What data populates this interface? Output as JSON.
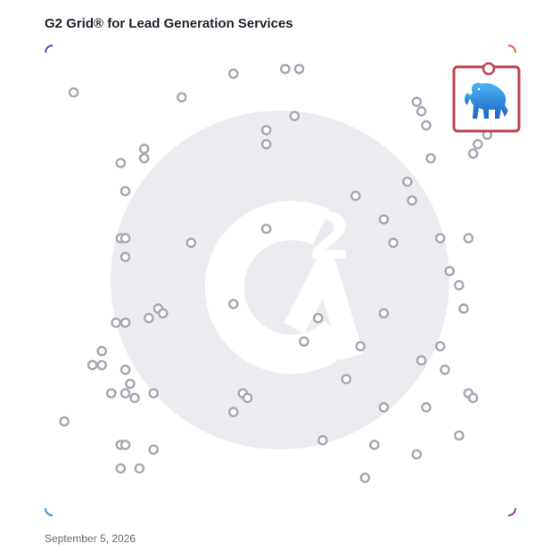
{
  "title": "G2 Grid® for Lead Generation Services",
  "date": "September 5, 2026",
  "colors": {
    "border_top_left": "#6a3fb5",
    "border_top_right": "#e8553a",
    "border_bottom_left": "#2f8fd6",
    "border_bottom_right": "#8a3aa6",
    "point": "#a6a8b1",
    "watermark": "#ececf0",
    "highlight": "#c0474f"
  },
  "highlight_icon": "blue-elephant-logo-icon",
  "chart_data": {
    "type": "scatter",
    "title": "G2 Grid® for Lead Generation Services",
    "xlim": [
      0,
      1
    ],
    "ylim": [
      0,
      1
    ],
    "grid": "quadrants",
    "highlight": {
      "x": 0.93,
      "y": 0.93
    },
    "points": [
      {
        "x": 0.06,
        "y": 0.9
      },
      {
        "x": 0.29,
        "y": 0.89
      },
      {
        "x": 0.4,
        "y": 0.94
      },
      {
        "x": 0.51,
        "y": 0.95
      },
      {
        "x": 0.54,
        "y": 0.95
      },
      {
        "x": 0.47,
        "y": 0.82
      },
      {
        "x": 0.47,
        "y": 0.79
      },
      {
        "x": 0.53,
        "y": 0.85
      },
      {
        "x": 0.16,
        "y": 0.75
      },
      {
        "x": 0.21,
        "y": 0.76
      },
      {
        "x": 0.21,
        "y": 0.78
      },
      {
        "x": 0.17,
        "y": 0.69
      },
      {
        "x": 0.16,
        "y": 0.59
      },
      {
        "x": 0.17,
        "y": 0.59
      },
      {
        "x": 0.17,
        "y": 0.55
      },
      {
        "x": 0.31,
        "y": 0.58
      },
      {
        "x": 0.47,
        "y": 0.61
      },
      {
        "x": 0.66,
        "y": 0.68
      },
      {
        "x": 0.72,
        "y": 0.63
      },
      {
        "x": 0.74,
        "y": 0.58
      },
      {
        "x": 0.77,
        "y": 0.71
      },
      {
        "x": 0.78,
        "y": 0.67
      },
      {
        "x": 0.79,
        "y": 0.88
      },
      {
        "x": 0.8,
        "y": 0.86
      },
      {
        "x": 0.81,
        "y": 0.83
      },
      {
        "x": 0.82,
        "y": 0.76
      },
      {
        "x": 0.84,
        "y": 0.59
      },
      {
        "x": 0.86,
        "y": 0.52
      },
      {
        "x": 0.88,
        "y": 0.49
      },
      {
        "x": 0.9,
        "y": 0.59
      },
      {
        "x": 0.91,
        "y": 0.77
      },
      {
        "x": 0.92,
        "y": 0.79
      },
      {
        "x": 0.94,
        "y": 0.81
      },
      {
        "x": 0.15,
        "y": 0.41
      },
      {
        "x": 0.17,
        "y": 0.41
      },
      {
        "x": 0.22,
        "y": 0.42
      },
      {
        "x": 0.24,
        "y": 0.44
      },
      {
        "x": 0.25,
        "y": 0.43
      },
      {
        "x": 0.4,
        "y": 0.45
      },
      {
        "x": 0.58,
        "y": 0.42
      },
      {
        "x": 0.72,
        "y": 0.43
      },
      {
        "x": 0.89,
        "y": 0.44
      },
      {
        "x": 0.12,
        "y": 0.35
      },
      {
        "x": 0.1,
        "y": 0.32
      },
      {
        "x": 0.12,
        "y": 0.32
      },
      {
        "x": 0.17,
        "y": 0.31
      },
      {
        "x": 0.18,
        "y": 0.28
      },
      {
        "x": 0.14,
        "y": 0.26
      },
      {
        "x": 0.17,
        "y": 0.26
      },
      {
        "x": 0.19,
        "y": 0.25
      },
      {
        "x": 0.23,
        "y": 0.26
      },
      {
        "x": 0.42,
        "y": 0.26
      },
      {
        "x": 0.43,
        "y": 0.25
      },
      {
        "x": 0.4,
        "y": 0.22
      },
      {
        "x": 0.55,
        "y": 0.37
      },
      {
        "x": 0.67,
        "y": 0.36
      },
      {
        "x": 0.64,
        "y": 0.29
      },
      {
        "x": 0.8,
        "y": 0.33
      },
      {
        "x": 0.84,
        "y": 0.36
      },
      {
        "x": 0.85,
        "y": 0.31
      },
      {
        "x": 0.9,
        "y": 0.26
      },
      {
        "x": 0.91,
        "y": 0.25
      },
      {
        "x": 0.72,
        "y": 0.23
      },
      {
        "x": 0.81,
        "y": 0.23
      },
      {
        "x": 0.04,
        "y": 0.2
      },
      {
        "x": 0.16,
        "y": 0.15
      },
      {
        "x": 0.17,
        "y": 0.15
      },
      {
        "x": 0.23,
        "y": 0.14
      },
      {
        "x": 0.16,
        "y": 0.1
      },
      {
        "x": 0.2,
        "y": 0.1
      },
      {
        "x": 0.59,
        "y": 0.16
      },
      {
        "x": 0.7,
        "y": 0.15
      },
      {
        "x": 0.88,
        "y": 0.17
      },
      {
        "x": 0.79,
        "y": 0.13
      },
      {
        "x": 0.68,
        "y": 0.08
      }
    ]
  }
}
